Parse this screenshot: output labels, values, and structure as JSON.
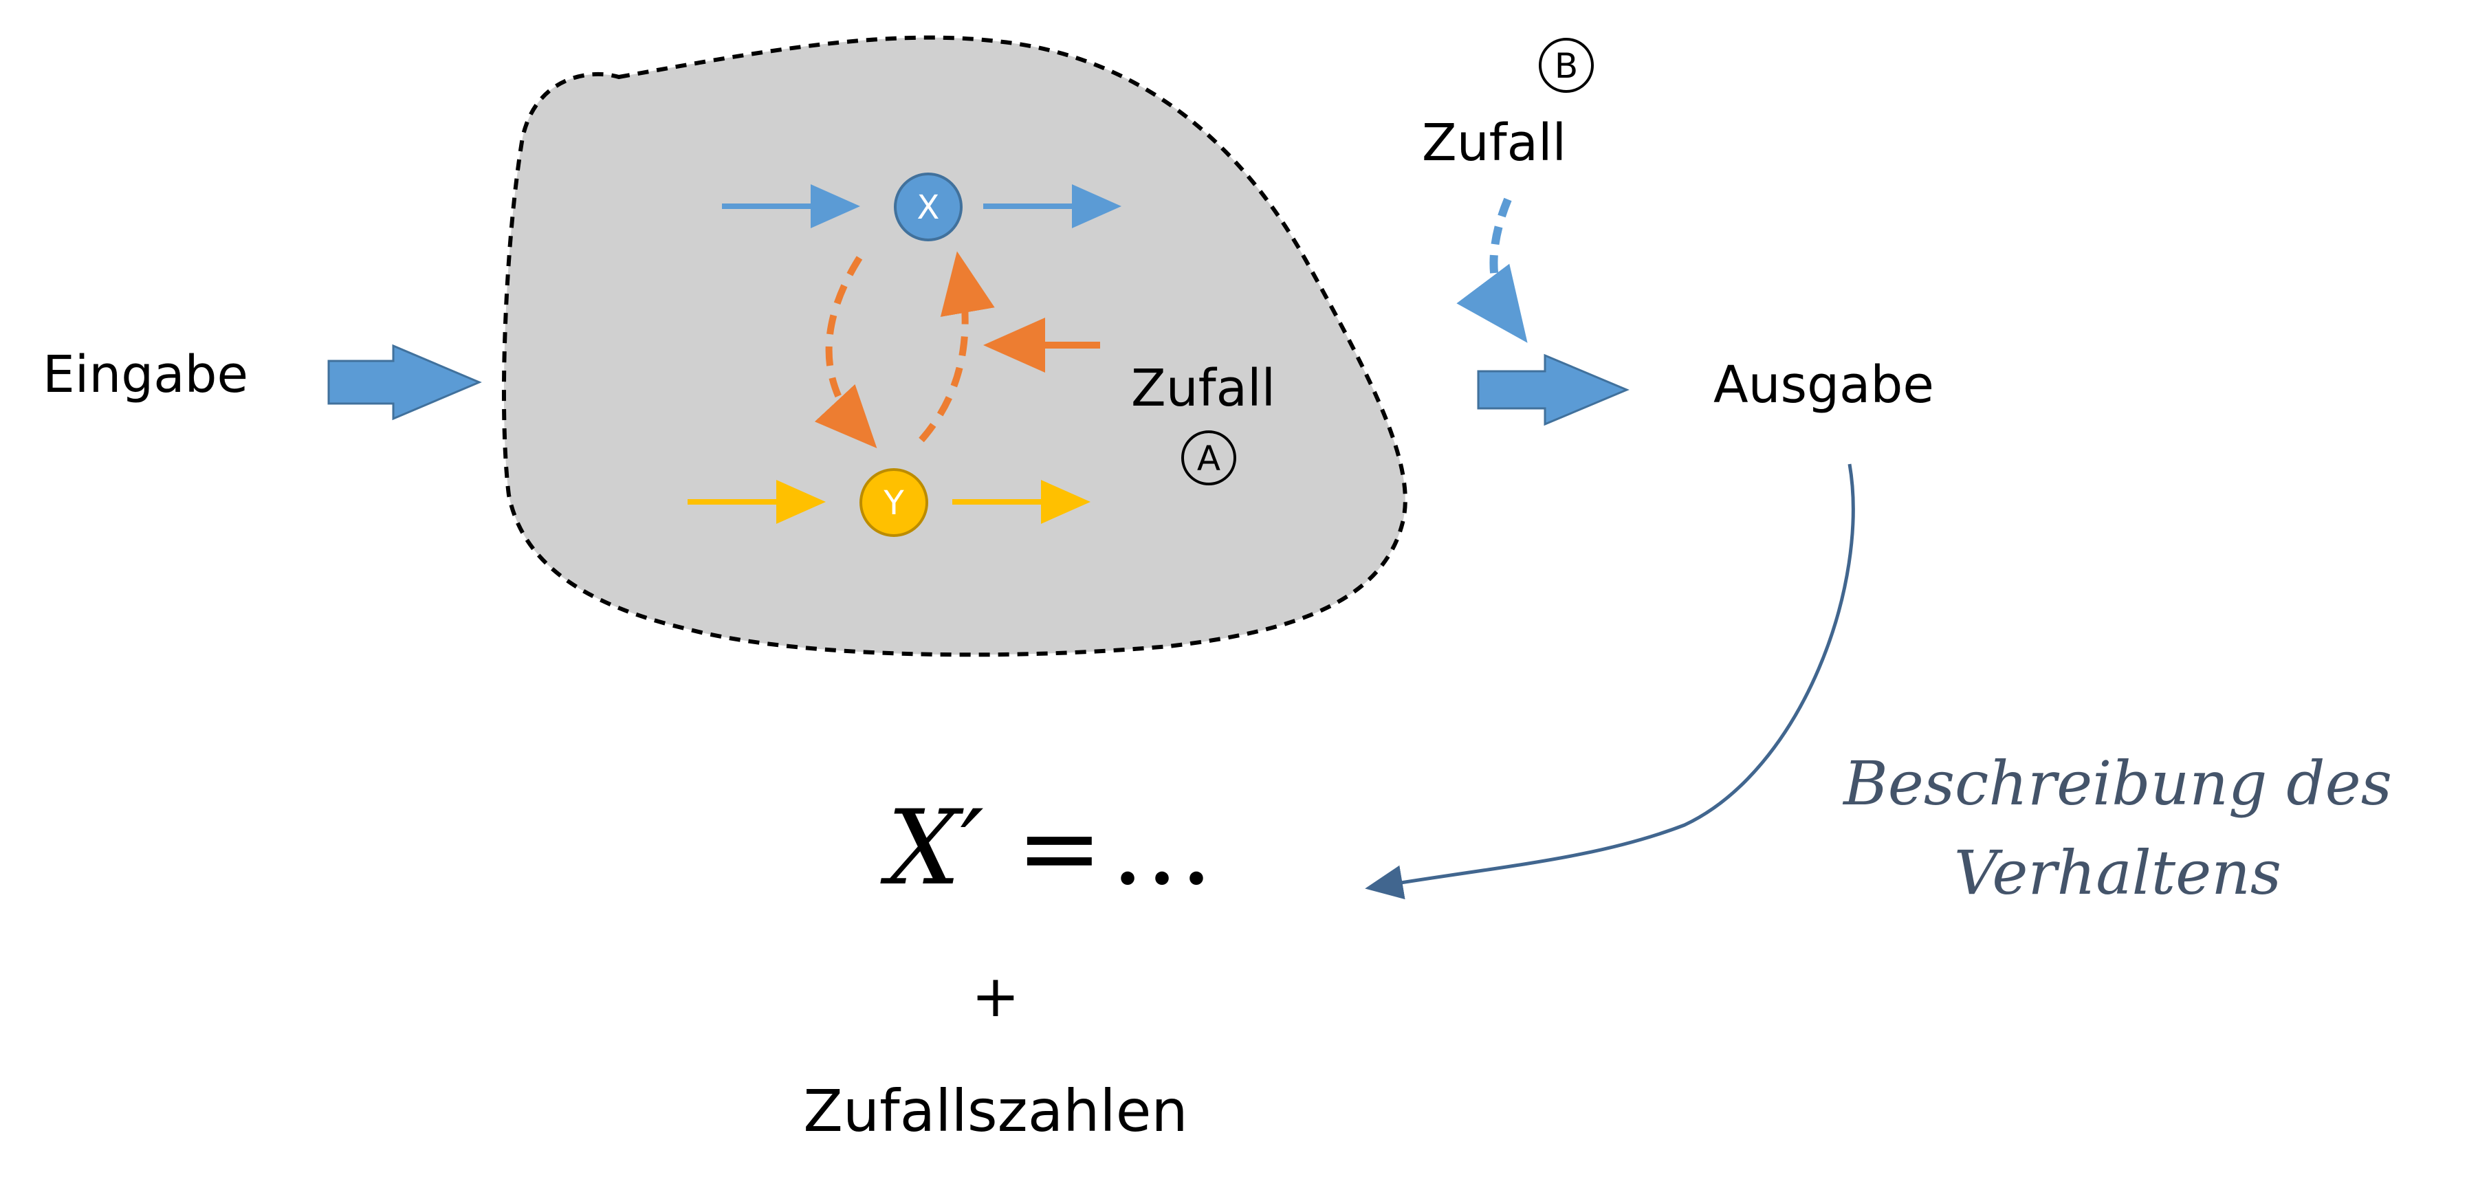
{
  "labels": {
    "input": "Eingabe",
    "output": "Ausgabe",
    "randomness_internal": "Zufall",
    "randomness_external": "Zufall",
    "marker_a": "A",
    "marker_b": "B",
    "node_x": "X",
    "node_y": "Y",
    "equation_lhs": "X′",
    "equation_eq": "=",
    "equation_rhs": "…",
    "plus": "+",
    "random_numbers": "Zufallszahlen",
    "description_line1": "Beschreibung des",
    "description_line2": "Verhaltens"
  },
  "colors": {
    "system_fill": "#d0d0d0",
    "system_border": "#000000",
    "blue": "#5b9bd5",
    "blue_dark": "#41719c",
    "orange": "#ed7d31",
    "yellow": "#ffc000",
    "yellow_dark": "#bc8c00",
    "description": "#44546A",
    "annotation_curve": "#41668f"
  }
}
